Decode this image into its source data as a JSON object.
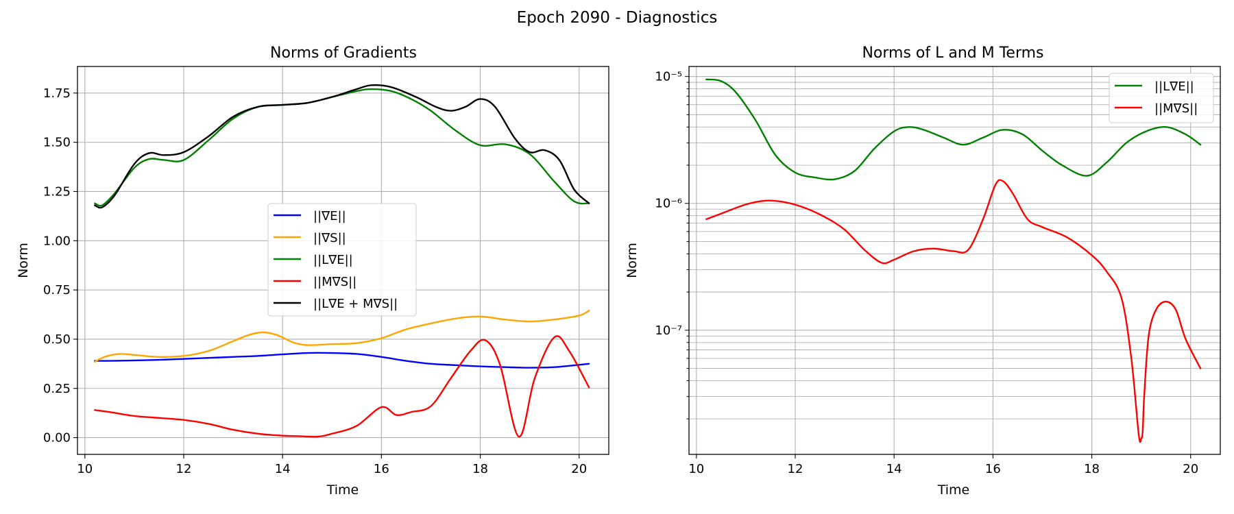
{
  "figure": {
    "suptitle": "Epoch 2090 - Diagnostics"
  },
  "chart_data": [
    {
      "type": "line",
      "title": "Norms of Gradients",
      "xlabel": "Time",
      "ylabel": "Norm",
      "xlim": [
        9.85,
        20.6
      ],
      "ylim": [
        -0.085,
        1.885
      ],
      "xticks": [
        10,
        12,
        14,
        16,
        18,
        20
      ],
      "yticks": [
        0.0,
        0.25,
        0.5,
        0.75,
        1.0,
        1.25,
        1.5,
        1.75
      ],
      "ytick_labels": [
        "0.00",
        "0.25",
        "0.50",
        "0.75",
        "1.00",
        "1.25",
        "1.50",
        "1.75"
      ],
      "grid": true,
      "legend_position": "center",
      "series": [
        {
          "name": "||∇E||",
          "color": "#0000ff",
          "x": [
            10.2,
            10.5,
            11,
            11.5,
            12,
            12.5,
            13,
            13.5,
            14,
            14.5,
            15,
            15.5,
            16,
            16.5,
            17,
            17.5,
            18,
            18.5,
            19,
            19.5,
            20,
            20.2
          ],
          "y": [
            0.39,
            0.39,
            0.392,
            0.395,
            0.4,
            0.405,
            0.41,
            0.415,
            0.423,
            0.43,
            0.43,
            0.425,
            0.41,
            0.39,
            0.375,
            0.368,
            0.362,
            0.358,
            0.355,
            0.358,
            0.37,
            0.375
          ]
        },
        {
          "name": "||∇S||",
          "color": "#ffa500",
          "x": [
            10.2,
            10.4,
            10.7,
            11,
            11.5,
            12,
            12.5,
            13,
            13.3,
            13.6,
            13.9,
            14.2,
            14.5,
            15,
            15.5,
            16,
            16.5,
            17,
            17.5,
            18,
            18.5,
            19,
            19.5,
            20,
            20.2
          ],
          "y": [
            0.385,
            0.41,
            0.425,
            0.42,
            0.41,
            0.415,
            0.44,
            0.49,
            0.52,
            0.535,
            0.52,
            0.485,
            0.47,
            0.475,
            0.48,
            0.505,
            0.55,
            0.58,
            0.605,
            0.615,
            0.6,
            0.59,
            0.6,
            0.62,
            0.645
          ]
        },
        {
          "name": "||L∇E||",
          "color": "#008000",
          "x": [
            10.2,
            10.35,
            10.6,
            11,
            11.3,
            11.6,
            12,
            12.5,
            13,
            13.5,
            14,
            14.5,
            15,
            15.5,
            15.8,
            16.2,
            16.6,
            17,
            17.5,
            18,
            18.5,
            19,
            19.5,
            19.9,
            20.2
          ],
          "y": [
            1.19,
            1.18,
            1.24,
            1.37,
            1.415,
            1.41,
            1.41,
            1.51,
            1.62,
            1.68,
            1.69,
            1.7,
            1.73,
            1.76,
            1.77,
            1.76,
            1.72,
            1.66,
            1.56,
            1.485,
            1.49,
            1.44,
            1.3,
            1.2,
            1.19
          ]
        },
        {
          "name": "||M∇S||",
          "color": "#ff0000",
          "x": [
            10.2,
            10.5,
            11,
            11.5,
            12,
            12.5,
            13,
            13.5,
            14,
            14.3,
            14.7,
            15,
            15.5,
            16,
            16.3,
            16.6,
            17,
            17.4,
            17.8,
            18.1,
            18.4,
            18.78,
            19.1,
            19.5,
            19.8,
            20.2
          ],
          "y": [
            0.14,
            0.13,
            0.11,
            0.1,
            0.09,
            0.07,
            0.04,
            0.02,
            0.01,
            0.008,
            0.005,
            0.02,
            0.06,
            0.155,
            0.115,
            0.13,
            0.16,
            0.3,
            0.44,
            0.495,
            0.37,
            0.005,
            0.3,
            0.51,
            0.44,
            0.255
          ]
        },
        {
          "name": "||L∇E + M∇S||",
          "color": "#000000",
          "x": [
            10.2,
            10.35,
            10.6,
            11,
            11.3,
            11.6,
            12,
            12.5,
            13,
            13.5,
            14,
            14.5,
            15,
            15.5,
            15.8,
            16.2,
            16.7,
            17.1,
            17.4,
            17.7,
            18,
            18.3,
            18.7,
            19,
            19.3,
            19.6,
            19.9,
            20.2
          ],
          "y": [
            1.18,
            1.17,
            1.23,
            1.39,
            1.445,
            1.435,
            1.45,
            1.53,
            1.63,
            1.68,
            1.69,
            1.7,
            1.73,
            1.77,
            1.79,
            1.78,
            1.73,
            1.68,
            1.66,
            1.68,
            1.72,
            1.68,
            1.52,
            1.45,
            1.46,
            1.41,
            1.26,
            1.19
          ]
        }
      ]
    },
    {
      "type": "line",
      "title": "Norms of L and M Terms",
      "xlabel": "Time",
      "ylabel": "Norm",
      "yscale": "log",
      "xlim": [
        9.85,
        20.6
      ],
      "ylim": [
        1.05e-08,
        1.2e-05
      ],
      "xticks": [
        10,
        12,
        14,
        16,
        18,
        20
      ],
      "yticks": [
        1e-07,
        1e-06,
        1e-05
      ],
      "ytick_labels": [
        "10⁻⁷",
        "10⁻⁶",
        "10⁻⁵"
      ],
      "grid": true,
      "legend_position": "upper right",
      "series": [
        {
          "name": "||L∇E||",
          "color": "#008000",
          "x": [
            10.2,
            10.5,
            10.8,
            11.2,
            11.6,
            12,
            12.4,
            12.8,
            13.2,
            13.6,
            14,
            14.3,
            14.6,
            15,
            15.4,
            15.8,
            16.2,
            16.6,
            17,
            17.4,
            17.9,
            18.3,
            18.7,
            19.1,
            19.5,
            19.9,
            20.2
          ],
          "y": [
            9.5e-06,
            9.2e-06,
            7.5e-06,
            4.5e-06,
            2.4e-06,
            1.75e-06,
            1.6e-06,
            1.55e-06,
            1.8e-06,
            2.7e-06,
            3.7e-06,
            4e-06,
            3.8e-06,
            3.3e-06,
            2.9e-06,
            3.3e-06,
            3.8e-06,
            3.5e-06,
            2.6e-06,
            2e-06,
            1.65e-06,
            2.1e-06,
            3e-06,
            3.7e-06,
            4e-06,
            3.5e-06,
            2.9e-06
          ]
        },
        {
          "name": "||M∇S||",
          "color": "#ff0000",
          "x": [
            10.2,
            10.5,
            11,
            11.4,
            11.8,
            12.2,
            12.6,
            13,
            13.4,
            13.75,
            14,
            14.4,
            14.8,
            15.2,
            15.5,
            15.8,
            16.05,
            16.2,
            16.4,
            16.7,
            17,
            17.5,
            18,
            18.3,
            18.6,
            18.8,
            18.95,
            19.0,
            19.03,
            19.06,
            19.15,
            19.3,
            19.5,
            19.7,
            19.9,
            20.2
          ],
          "y": [
            7.5e-07,
            8.3e-07,
            9.8e-07,
            1.05e-06,
            1.02e-06,
            9.2e-07,
            7.8e-07,
            6.2e-07,
            4.3e-07,
            3.4e-07,
            3.6e-07,
            4.2e-07,
            4.4e-07,
            4.2e-07,
            4.3e-07,
            7.5e-07,
            1.4e-06,
            1.5e-06,
            1.2e-06,
            7.5e-07,
            6.5e-07,
            5.4e-07,
            3.9e-07,
            2.9e-07,
            1.8e-07,
            6e-08,
            1.5e-08,
            1.4e-08,
            1.6e-08,
            3e-08,
            9e-08,
            1.45e-07,
            1.68e-07,
            1.45e-07,
            8.5e-08,
            5e-08
          ]
        }
      ]
    }
  ]
}
